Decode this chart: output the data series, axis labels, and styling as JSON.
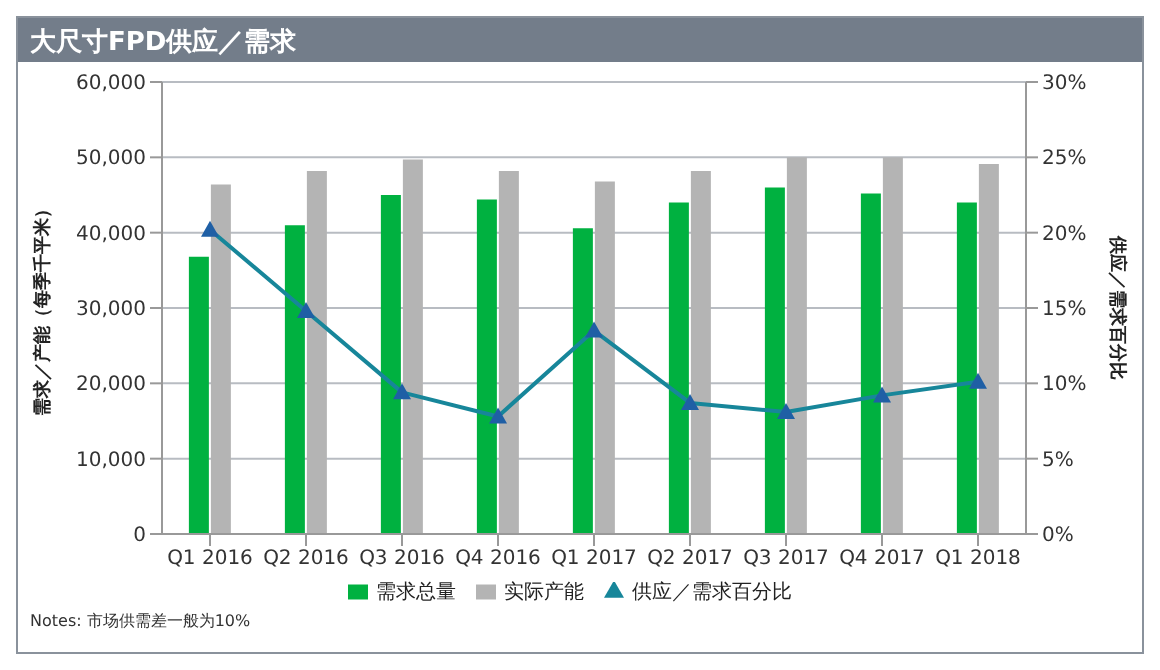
{
  "chart_data": {
    "type": "bar",
    "title": "大尺寸FPD供应／需求",
    "ylabel": "需求／产能（每季千平米）",
    "y2label": "供应／需求百分比",
    "categories": [
      "Q1 2016",
      "Q2 2016",
      "Q3 2016",
      "Q4 2016",
      "Q1 2017",
      "Q2 2017",
      "Q3 2017",
      "Q4 2017",
      "Q1 2018"
    ],
    "series": [
      {
        "name": "需求总量",
        "color": "#00b140",
        "values": [
          36800,
          41000,
          45000,
          44400,
          40600,
          44000,
          46000,
          45200,
          44000
        ]
      },
      {
        "name": "实际产能",
        "color": "#b4b4b4",
        "values": [
          46400,
          48200,
          49700,
          48200,
          46800,
          48200,
          50000,
          50000,
          49100
        ]
      },
      {
        "name": "供应／需求百分比",
        "type": "line",
        "axis": "y2",
        "color": "#17869a",
        "marker": "triangle",
        "values": [
          20.2,
          14.8,
          9.4,
          7.8,
          13.5,
          8.7,
          8.1,
          9.2,
          10.1
        ]
      }
    ],
    "ylim": [
      0,
      60000
    ],
    "yticks": [
      {
        "value": 0,
        "label": "0"
      },
      {
        "value": 10000,
        "label": "10,000"
      },
      {
        "value": 20000,
        "label": "20,000"
      },
      {
        "value": 30000,
        "label": "30,000"
      },
      {
        "value": 40000,
        "label": "40,000"
      },
      {
        "value": 50000,
        "label": "50,000"
      },
      {
        "value": 60000,
        "label": "60,000"
      }
    ],
    "y2lim": [
      0,
      30
    ],
    "y2ticks": [
      {
        "value": 0,
        "label": "0%"
      },
      {
        "value": 5,
        "label": "5%"
      },
      {
        "value": 10,
        "label": "10%"
      },
      {
        "value": 15,
        "label": "15%"
      },
      {
        "value": 20,
        "label": "20%"
      },
      {
        "value": 25,
        "label": "25%"
      },
      {
        "value": 30,
        "label": "30%"
      }
    ],
    "grid": "y",
    "legend": "bottom",
    "annotations": [
      "Notes: 市场供需差一般为10%"
    ]
  }
}
